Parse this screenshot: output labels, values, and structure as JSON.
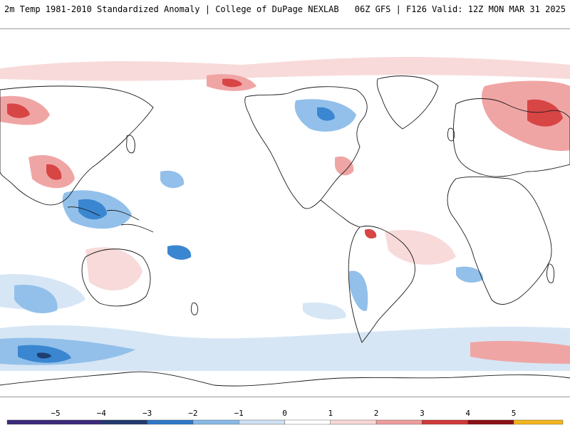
{
  "header": {
    "left": "2m Temp 1981-2010 Standardized Anomaly | College of DuPage NEXLAB",
    "right": "06Z GFS | F126 Valid: 12Z MON MAR 31 2025"
  },
  "legend": {
    "stops": [
      {
        "value": -5,
        "color": "#3b2a7a"
      },
      {
        "value": -4,
        "color": "#223a6e"
      },
      {
        "value": -3,
        "color": "#2e78c8"
      },
      {
        "value": -2,
        "color": "#88b9e6"
      },
      {
        "value": -1,
        "color": "#cfe0f2"
      },
      {
        "value": 0,
        "color": "#ffffff"
      },
      {
        "value": 1,
        "color": "#f7d6d6"
      },
      {
        "value": 2,
        "color": "#ee9c9c"
      },
      {
        "value": 3,
        "color": "#d03838"
      },
      {
        "value": 4,
        "color": "#8b0f14"
      },
      {
        "value": 5,
        "color": "#f2b51c"
      }
    ],
    "labels": [
      "−5",
      "−4",
      "−3",
      "−2",
      "−1",
      "0",
      "1",
      "2",
      "3",
      "4",
      "5"
    ]
  },
  "colors": {
    "land_outline": "#1a1a1a",
    "cold_light": "#d6e6f5",
    "cold_mid": "#93c0ea",
    "cold_strong": "#3a86d1",
    "cold_extreme": "#1f3f73",
    "warm_light": "#f8dada",
    "warm_mid": "#f0a5a5",
    "warm_strong": "#d84545"
  }
}
